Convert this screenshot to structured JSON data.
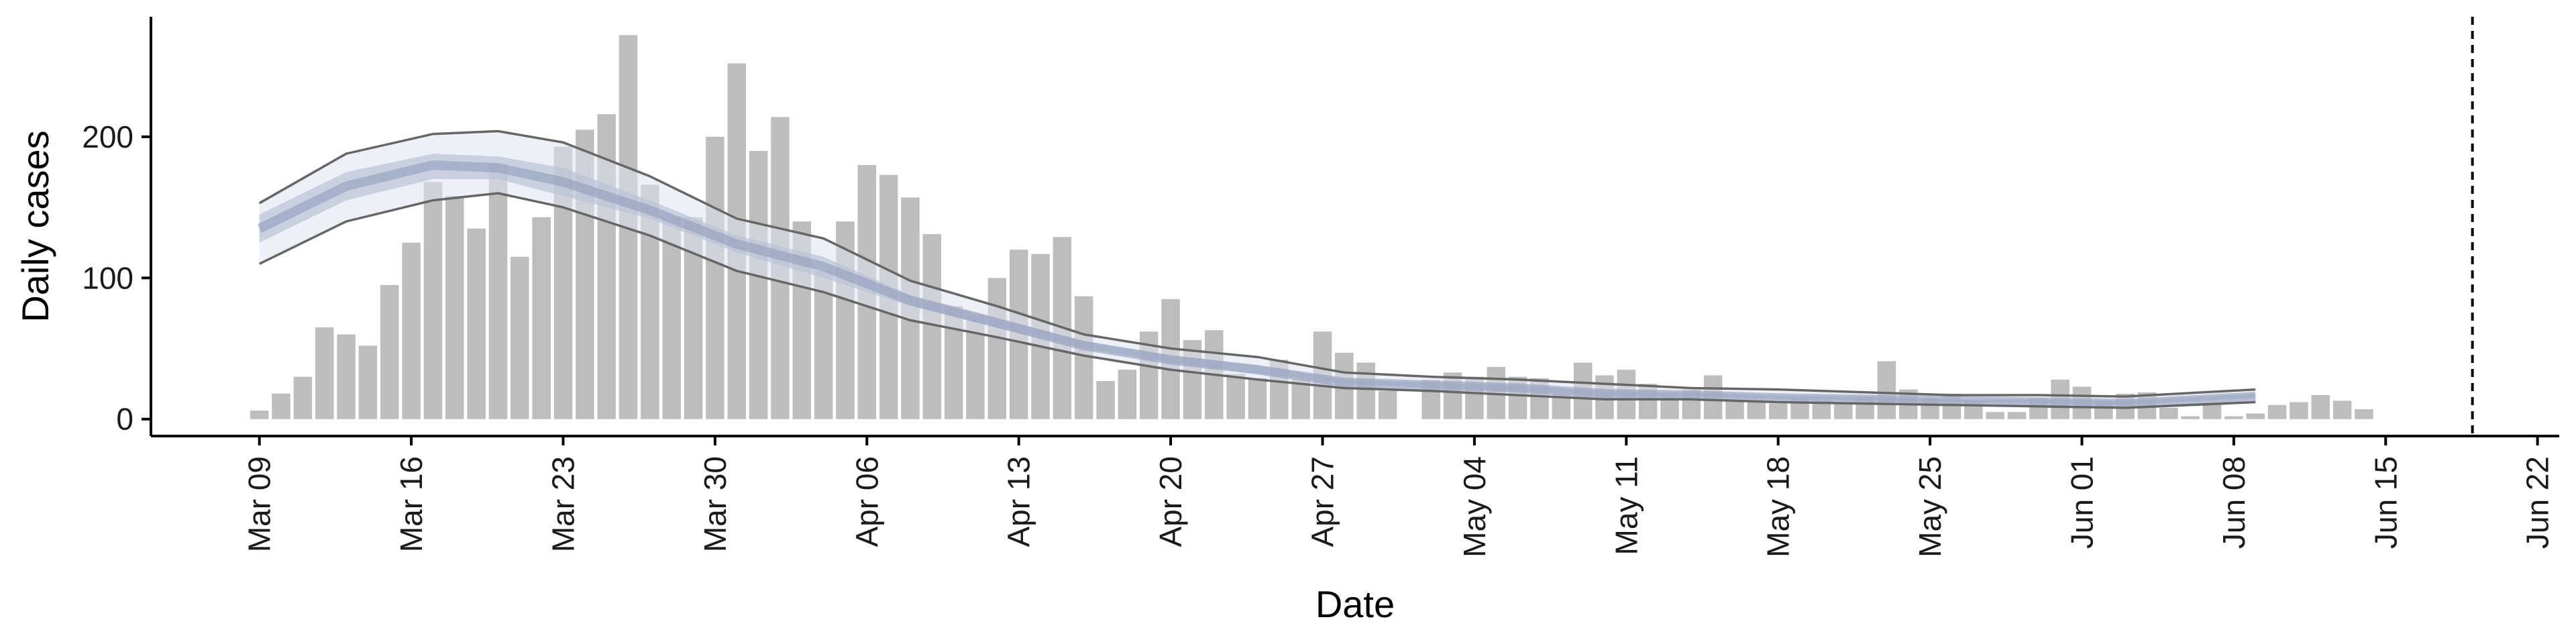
{
  "chart_data": {
    "type": "bar",
    "title": "",
    "xlabel": "Date",
    "ylabel": "Daily cases",
    "start_date": "2020-03-09",
    "x_ticks": [
      "Mar 09",
      "Mar 16",
      "Mar 23",
      "Mar 30",
      "Apr 06",
      "Apr 13",
      "Apr 20",
      "Apr 27",
      "May 04",
      "May 11",
      "May 18",
      "May 25",
      "Jun 01",
      "Jun 08",
      "Jun 15",
      "Jun 22"
    ],
    "y_ticks": [
      0,
      100,
      200
    ],
    "ylim": [
      -12,
      285
    ],
    "xlim": [
      "2020-03-04",
      "2020-06-23"
    ],
    "vline_date": "2020-06-19",
    "colors": {
      "bars": "#bdbdbd",
      "ribbon_outer": "#dfe3ee",
      "ribbon_inner": "#b9c3d8",
      "ribbon_core": "#8f9dbb",
      "ci_lines": "#666666",
      "vline": "#000000"
    },
    "bars": {
      "label": "Daily cases",
      "values": [
        6,
        18,
        30,
        65,
        60,
        52,
        95,
        125,
        168,
        158,
        135,
        181,
        115,
        143,
        193,
        205,
        216,
        272,
        166,
        143,
        143,
        200,
        252,
        190,
        214,
        140,
        105,
        140,
        180,
        173,
        157,
        131,
        80,
        73,
        100,
        120,
        117,
        129,
        87,
        27,
        35,
        62,
        85,
        56,
        63,
        32,
        29,
        42,
        28,
        62,
        47,
        40,
        20,
        0,
        28,
        33,
        30,
        37,
        30,
        29,
        18,
        40,
        31,
        35,
        25,
        18,
        21,
        31,
        14,
        13,
        11,
        15,
        13,
        11,
        16,
        41,
        21,
        15,
        18,
        13,
        5,
        5,
        15,
        28,
        23,
        13,
        18,
        19,
        8,
        2,
        11,
        2,
        4,
        10,
        12,
        17,
        13,
        7
      ]
    },
    "estimate": {
      "dates": [
        "2020-03-09",
        "2020-03-13",
        "2020-03-17",
        "2020-03-20",
        "2020-03-23",
        "2020-03-27",
        "2020-03-31",
        "2020-04-04",
        "2020-04-08",
        "2020-04-12",
        "2020-04-16",
        "2020-04-20",
        "2020-04-24",
        "2020-04-28",
        "2020-05-02",
        "2020-05-06",
        "2020-05-10",
        "2020-05-14",
        "2020-05-18",
        "2020-05-22",
        "2020-05-26",
        "2020-05-30",
        "2020-06-03",
        "2020-06-09"
      ],
      "lower": [
        110,
        140,
        155,
        160,
        150,
        130,
        105,
        90,
        70,
        58,
        45,
        35,
        28,
        22,
        20,
        17,
        14,
        14,
        12,
        11,
        10,
        9,
        8,
        12
      ],
      "upper": [
        153,
        188,
        202,
        204,
        196,
        172,
        142,
        128,
        98,
        80,
        60,
        50,
        44,
        33,
        30,
        28,
        25,
        22,
        21,
        19,
        17,
        17,
        16,
        21
      ],
      "inner_lower": [
        125,
        155,
        170,
        170,
        158,
        142,
        118,
        100,
        80,
        65,
        50,
        40,
        32,
        25,
        22,
        20,
        16,
        16,
        14,
        13,
        12,
        11,
        10,
        15
      ],
      "inner_upper": [
        145,
        175,
        188,
        186,
        178,
        155,
        130,
        115,
        88,
        72,
        55,
        45,
        38,
        28,
        26,
        24,
        20,
        19,
        17,
        16,
        14,
        14,
        13,
        18
      ],
      "median": [
        135,
        165,
        180,
        178,
        168,
        148,
        124,
        108,
        84,
        68,
        52,
        42,
        35,
        26,
        24,
        22,
        18,
        17,
        15,
        14,
        13,
        12,
        11,
        16
      ]
    }
  }
}
